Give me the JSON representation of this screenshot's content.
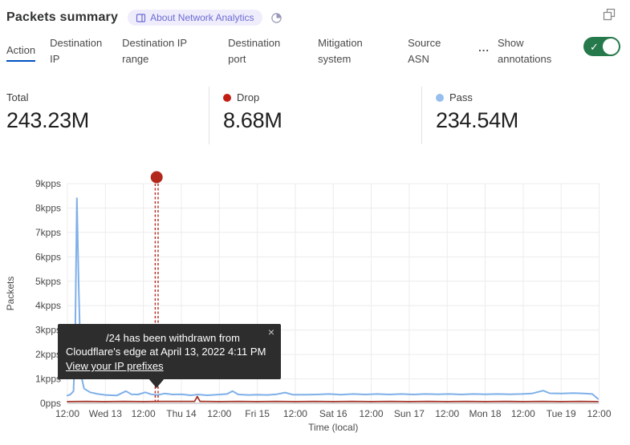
{
  "header": {
    "title": "Packets summary",
    "badge_label": "About Network Analytics",
    "icons": {
      "badge": "book-icon",
      "period": "pie-icon",
      "corner": "overlap-squares-icon"
    }
  },
  "tabs": {
    "items": [
      {
        "label": "Action",
        "active": true
      },
      {
        "label": "Destination IP",
        "active": false
      },
      {
        "label": "Destination IP range",
        "active": false
      },
      {
        "label": "Destination port",
        "active": false
      },
      {
        "label": "Mitigation system",
        "active": false
      },
      {
        "label": "Source ASN",
        "active": false
      }
    ],
    "more_label": "...",
    "annotations_label": "Show annotations",
    "annotations_toggle_on": true,
    "active_underline_color": "#0051c3",
    "toggle_color": "#26794a"
  },
  "stats": {
    "items": [
      {
        "label": "Total",
        "value": "243.23M",
        "dot_color": ""
      },
      {
        "label": "Drop",
        "value": "8.68M",
        "dot_color": "#c21f14"
      },
      {
        "label": "Pass",
        "value": "234.54M",
        "dot_color": "#96bfed"
      }
    ]
  },
  "tooltip": {
    "line1": "/24 has been withdrawn from",
    "line2": "Cloudflare's edge at April 13, 2022 4:11 PM",
    "link": "View your IP prefixes",
    "close": "×"
  },
  "chart_data": {
    "type": "line",
    "title": "Packets summary",
    "xlabel": "Time (local)",
    "ylabel": "Packets",
    "ylim": [
      0,
      9
    ],
    "y_unit": "kpps",
    "grid": true,
    "legend_position": "top (stats row)",
    "y_ticks": [
      "0pps",
      "1kpps",
      "2kpps",
      "3kpps",
      "4kpps",
      "5kpps",
      "6kpps",
      "7kpps",
      "8kpps",
      "9kpps"
    ],
    "x_ticks": [
      "12:00",
      "Wed 13",
      "12:00",
      "Thu 14",
      "12:00",
      "Fri 15",
      "12:00",
      "Sat 16",
      "12:00",
      "Sun 17",
      "12:00",
      "Mon 18",
      "12:00",
      "Tue 19",
      "12:00"
    ],
    "series": [
      {
        "name": "Pass",
        "color": "#7fb0e8",
        "width": 2,
        "total": "234.54M",
        "points": [
          [
            0,
            0.32
          ],
          [
            0.08,
            0.36
          ],
          [
            0.16,
            0.5
          ],
          [
            0.2,
            2.2
          ],
          [
            0.25,
            8.4
          ],
          [
            0.3,
            4.6
          ],
          [
            0.36,
            1.15
          ],
          [
            0.44,
            0.6
          ],
          [
            0.6,
            0.45
          ],
          [
            0.8,
            0.38
          ],
          [
            1,
            0.34
          ],
          [
            1.3,
            0.32
          ],
          [
            1.54,
            0.5
          ],
          [
            1.68,
            0.37
          ],
          [
            1.86,
            0.36
          ],
          [
            2.05,
            0.45
          ],
          [
            2.2,
            0.37
          ],
          [
            2.37,
            0.34
          ],
          [
            2.56,
            0.4
          ],
          [
            2.77,
            0.36
          ],
          [
            3,
            0.37
          ],
          [
            3.25,
            0.33
          ],
          [
            3.44,
            0.36
          ],
          [
            3.68,
            0.33
          ],
          [
            3.93,
            0.35
          ],
          [
            4.2,
            0.38
          ],
          [
            4.35,
            0.5
          ],
          [
            4.5,
            0.36
          ],
          [
            4.78,
            0.34
          ],
          [
            5,
            0.35
          ],
          [
            5.26,
            0.34
          ],
          [
            5.51,
            0.37
          ],
          [
            5.73,
            0.44
          ],
          [
            5.94,
            0.35
          ],
          [
            6.26,
            0.35
          ],
          [
            6.57,
            0.36
          ],
          [
            6.89,
            0.38
          ],
          [
            7.2,
            0.35
          ],
          [
            7.52,
            0.38
          ],
          [
            7.84,
            0.36
          ],
          [
            8.16,
            0.38
          ],
          [
            8.47,
            0.36
          ],
          [
            8.79,
            0.38
          ],
          [
            9.11,
            0.36
          ],
          [
            9.42,
            0.38
          ],
          [
            9.74,
            0.37
          ],
          [
            10.06,
            0.38
          ],
          [
            10.37,
            0.36
          ],
          [
            10.69,
            0.38
          ],
          [
            11.01,
            0.37
          ],
          [
            11.32,
            0.38
          ],
          [
            11.64,
            0.37
          ],
          [
            11.96,
            0.38
          ],
          [
            12.23,
            0.4
          ],
          [
            12.53,
            0.52
          ],
          [
            12.7,
            0.41
          ],
          [
            13.02,
            0.4
          ],
          [
            13.33,
            0.42
          ],
          [
            13.61,
            0.4
          ],
          [
            13.82,
            0.38
          ],
          [
            13.97,
            0.18
          ]
        ]
      },
      {
        "name": "Drop",
        "color": "#a5352a",
        "width": 1.8,
        "total": "8.68M",
        "points": [
          [
            0,
            0.07
          ],
          [
            0.5,
            0.08
          ],
          [
            1,
            0.07
          ],
          [
            1.5,
            0.08
          ],
          [
            2,
            0.07
          ],
          [
            2.5,
            0.08
          ],
          [
            3,
            0.08
          ],
          [
            3.35,
            0.08
          ],
          [
            3.42,
            0.28
          ],
          [
            3.49,
            0.08
          ],
          [
            4,
            0.07
          ],
          [
            4.5,
            0.08
          ],
          [
            5,
            0.07
          ],
          [
            5.5,
            0.08
          ],
          [
            6,
            0.07
          ],
          [
            6.5,
            0.08
          ],
          [
            7,
            0.07
          ],
          [
            7.5,
            0.08
          ],
          [
            8,
            0.07
          ],
          [
            8.5,
            0.08
          ],
          [
            9,
            0.07
          ],
          [
            9.5,
            0.08
          ],
          [
            10,
            0.07
          ],
          [
            10.5,
            0.08
          ],
          [
            11,
            0.07
          ],
          [
            11.5,
            0.08
          ],
          [
            12,
            0.07
          ],
          [
            12.5,
            0.08
          ],
          [
            13,
            0.07
          ],
          [
            13.5,
            0.08
          ],
          [
            13.97,
            0.07
          ]
        ]
      }
    ],
    "annotation": {
      "x": 2.35,
      "color": "#b2281c",
      "style": "double-dashed-vertical-line-with-dot",
      "label": "/24 has been withdrawn from Cloudflare's edge at April 13, 2022 4:11 PM"
    }
  }
}
